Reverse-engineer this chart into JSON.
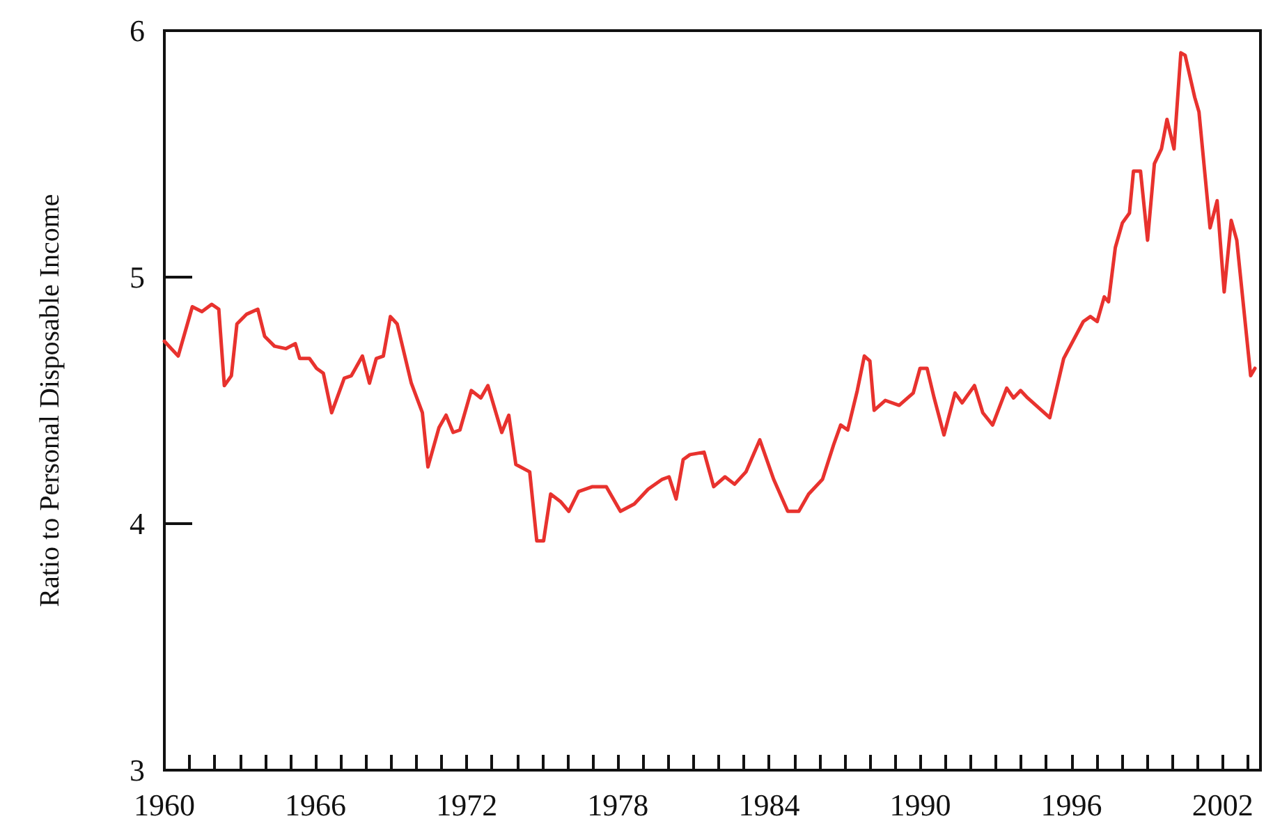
{
  "chart_data": {
    "type": "line",
    "ylabel": "Ratio to Personal Disposable Income",
    "xlim": [
      1960,
      2003.5
    ],
    "ylim": [
      3,
      6
    ],
    "yticks": [
      3,
      4,
      5,
      6
    ],
    "xticks": [
      1960,
      {
        "value": 1961,
        "label": null
      },
      {
        "value": 1962,
        "label": null
      },
      {
        "value": 1963,
        "label": null
      },
      {
        "value": 1964,
        "label": null
      },
      {
        "value": 1965,
        "label": null
      },
      1966,
      {
        "value": 1967,
        "label": null
      },
      {
        "value": 1968,
        "label": null
      },
      {
        "value": 1969,
        "label": null
      },
      {
        "value": 1970,
        "label": null
      },
      {
        "value": 1971,
        "label": null
      },
      1972,
      {
        "value": 1973,
        "label": null
      },
      {
        "value": 1974,
        "label": null
      },
      {
        "value": 1975,
        "label": null
      },
      {
        "value": 1976,
        "label": null
      },
      {
        "value": 1977,
        "label": null
      },
      1978,
      {
        "value": 1979,
        "label": null
      },
      {
        "value": 1980,
        "label": null
      },
      {
        "value": 1981,
        "label": null
      },
      {
        "value": 1982,
        "label": null
      },
      {
        "value": 1983,
        "label": null
      },
      1984,
      {
        "value": 1985,
        "label": null
      },
      {
        "value": 1986,
        "label": null
      },
      {
        "value": 1987,
        "label": null
      },
      {
        "value": 1988,
        "label": null
      },
      {
        "value": 1989,
        "label": null
      },
      1990,
      {
        "value": 1991,
        "label": null
      },
      {
        "value": 1992,
        "label": null
      },
      {
        "value": 1993,
        "label": null
      },
      {
        "value": 1994,
        "label": null
      },
      {
        "value": 1995,
        "label": null
      },
      1996,
      {
        "value": 1997,
        "label": null
      },
      {
        "value": 1998,
        "label": null
      },
      {
        "value": 1999,
        "label": null
      },
      {
        "value": 2000,
        "label": null
      },
      {
        "value": 2001,
        "label": null
      },
      2002,
      {
        "value": 2003,
        "label": null
      }
    ],
    "grid": false,
    "marker": "none",
    "line_style": "solid",
    "series": [
      {
        "color": "#e8322e",
        "x": [
          1960.0,
          1960.55,
          1961.11,
          1961.49,
          1961.88,
          1962.16,
          1962.38,
          1962.66,
          1962.88,
          1963.27,
          1963.71,
          1963.98,
          1964.37,
          1964.82,
          1965.2,
          1965.37,
          1965.76,
          1966.04,
          1966.31,
          1966.64,
          1967.14,
          1967.42,
          1967.86,
          1968.14,
          1968.41,
          1968.69,
          1968.97,
          1969.24,
          1969.8,
          1970.24,
          1970.46,
          1970.9,
          1971.18,
          1971.46,
          1971.73,
          1972.18,
          1972.56,
          1972.84,
          1973.39,
          1973.67,
          1973.95,
          1974.5,
          1974.78,
          1975.05,
          1975.33,
          1975.72,
          1976.05,
          1976.44,
          1976.99,
          1977.54,
          1978.1,
          1978.65,
          1979.2,
          1979.76,
          1980.03,
          1980.31,
          1980.59,
          1980.86,
          1981.42,
          1981.8,
          1982.25,
          1982.63,
          1983.08,
          1983.63,
          1984.18,
          1984.74,
          1985.18,
          1985.57,
          1986.12,
          1986.56,
          1986.84,
          1987.12,
          1987.5,
          1987.78,
          1988.0,
          1988.17,
          1988.61,
          1989.16,
          1989.72,
          1989.99,
          1990.27,
          1990.55,
          1990.94,
          1991.38,
          1991.66,
          1992.15,
          1992.48,
          1992.87,
          1993.43,
          1993.7,
          1993.98,
          1994.26,
          1994.7,
          1995.14,
          1995.69,
          1996.47,
          1996.75,
          1997.02,
          1997.3,
          1997.47,
          1997.74,
          1998.02,
          1998.3,
          1998.46,
          1998.74,
          1999.02,
          1999.29,
          1999.57,
          1999.79,
          2000.07,
          2000.34,
          2000.51,
          2000.89,
          2001.06,
          2001.5,
          2001.78,
          2002.06,
          2002.34,
          2002.56,
          2003.11,
          2003.28
        ],
        "values": [
          4.74,
          4.68,
          4.88,
          4.86,
          4.89,
          4.87,
          4.56,
          4.6,
          4.81,
          4.85,
          4.87,
          4.76,
          4.72,
          4.71,
          4.73,
          4.67,
          4.67,
          4.63,
          4.61,
          4.45,
          4.59,
          4.6,
          4.68,
          4.57,
          4.67,
          4.68,
          4.84,
          4.81,
          4.57,
          4.45,
          4.23,
          4.39,
          4.44,
          4.37,
          4.38,
          4.54,
          4.51,
          4.56,
          4.37,
          4.44,
          4.24,
          4.21,
          3.93,
          3.93,
          4.12,
          4.09,
          4.05,
          4.13,
          4.15,
          4.15,
          4.05,
          4.08,
          4.14,
          4.18,
          4.19,
          4.1,
          4.26,
          4.28,
          4.29,
          4.15,
          4.19,
          4.16,
          4.21,
          4.34,
          4.18,
          4.05,
          4.05,
          4.12,
          4.18,
          4.32,
          4.4,
          4.38,
          4.54,
          4.68,
          4.66,
          4.46,
          4.5,
          4.48,
          4.53,
          4.63,
          4.63,
          4.51,
          4.36,
          4.53,
          4.49,
          4.56,
          4.45,
          4.4,
          4.55,
          4.51,
          4.54,
          4.51,
          4.47,
          4.43,
          4.67,
          4.82,
          4.84,
          4.82,
          4.92,
          4.9,
          5.12,
          5.22,
          5.26,
          5.43,
          5.43,
          5.15,
          5.46,
          5.52,
          5.64,
          5.52,
          5.91,
          5.9,
          5.73,
          5.67,
          5.2,
          5.31,
          4.94,
          5.23,
          5.15,
          4.6,
          4.63
        ]
      }
    ]
  }
}
